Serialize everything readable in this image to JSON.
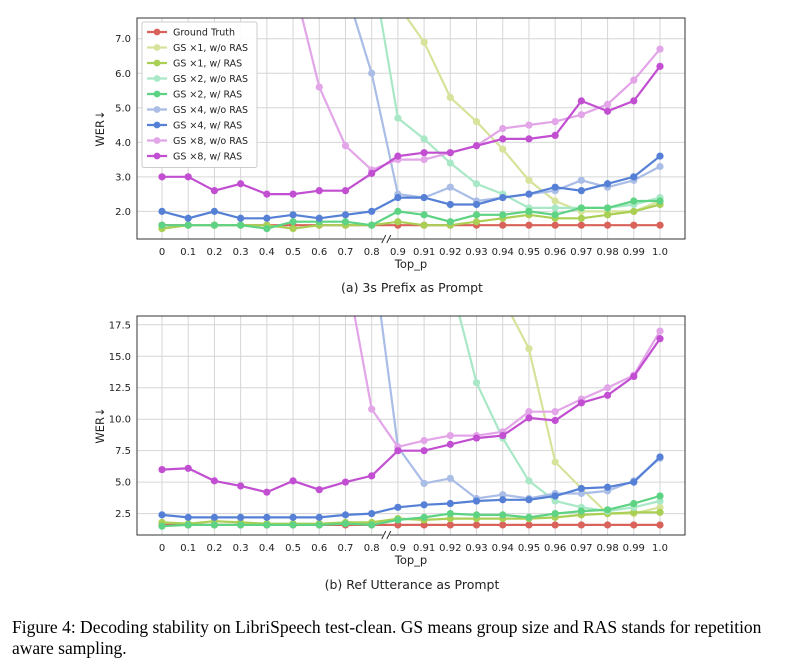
{
  "figure": {
    "caption": "Figure 4: Decoding stability on LibriSpeech test-clean. GS means group size and RAS stands for repetition aware sampling."
  },
  "chart_data": [
    {
      "type": "line",
      "subtitle": "(a) 3s Prefix as Prompt",
      "xlabel": "Top_p",
      "ylabel": "WER↓",
      "categories": [
        "0",
        "0.1",
        "0.2",
        "0.3",
        "0.4",
        "0.5",
        "0.6",
        "0.7",
        "0.8",
        "0.9",
        "0.91",
        "0.92",
        "0.93",
        "0.94",
        "0.95",
        "0.96",
        "0.97",
        "0.98",
        "0.99",
        "1.0"
      ],
      "ylim": [
        1.2,
        7.6
      ],
      "yticks": [
        "2.0",
        "3.0",
        "4.0",
        "5.0",
        "6.0",
        "7.0"
      ],
      "grid": true,
      "legend_position": "top-left",
      "axis_break_after": "0.8",
      "series": [
        {
          "name": "Ground Truth",
          "color": "#d9625a",
          "values": [
            1.6,
            1.6,
            1.6,
            1.6,
            1.6,
            1.6,
            1.6,
            1.6,
            1.6,
            1.6,
            1.6,
            1.6,
            1.6,
            1.6,
            1.6,
            1.6,
            1.6,
            1.6,
            1.6,
            1.6
          ]
        },
        {
          "name": "GS ×1, w/o RAS",
          "color": "#d6e39a",
          "values": [
            null,
            null,
            null,
            null,
            null,
            null,
            null,
            null,
            null,
            null,
            6.9,
            5.3,
            4.6,
            3.8,
            2.9,
            2.3,
            2.0,
            2.0,
            2.0,
            2.3
          ]
        },
        {
          "name": "GS ×1, w/ RAS",
          "color": "#a9cf54",
          "values": [
            1.5,
            1.6,
            1.6,
            1.6,
            1.6,
            1.5,
            1.6,
            1.6,
            1.6,
            1.7,
            1.6,
            1.6,
            1.7,
            1.8,
            1.9,
            1.8,
            1.8,
            1.9,
            2.0,
            2.2
          ]
        },
        {
          "name": "GS ×2, w/o RAS",
          "color": "#a8e8c6",
          "values": [
            null,
            null,
            null,
            null,
            null,
            null,
            null,
            null,
            null,
            4.7,
            4.1,
            3.4,
            2.8,
            2.5,
            2.1,
            2.1,
            2.1,
            2.1,
            2.2,
            2.4
          ]
        },
        {
          "name": "GS ×2, w/ RAS",
          "color": "#5dd383",
          "values": [
            1.6,
            1.6,
            1.6,
            1.6,
            1.5,
            1.7,
            1.7,
            1.7,
            1.6,
            2.0,
            1.9,
            1.7,
            1.9,
            1.9,
            2.0,
            1.9,
            2.1,
            2.1,
            2.3,
            2.3
          ]
        },
        {
          "name": "GS ×4, w/o RAS",
          "color": "#a9bde6",
          "values": [
            null,
            null,
            null,
            null,
            null,
            null,
            null,
            null,
            6.0,
            2.5,
            2.4,
            2.7,
            2.3,
            2.4,
            2.5,
            2.6,
            2.9,
            2.7,
            2.9,
            3.3
          ]
        },
        {
          "name": "GS ×4, w/ RAS",
          "color": "#5580d6",
          "values": [
            2.0,
            1.8,
            2.0,
            1.8,
            1.8,
            1.9,
            1.8,
            1.9,
            2.0,
            2.4,
            2.4,
            2.2,
            2.2,
            2.4,
            2.5,
            2.7,
            2.6,
            2.8,
            3.0,
            3.6
          ]
        },
        {
          "name": "GS ×8, w/o RAS",
          "color": "#e2a5e8",
          "values": [
            null,
            null,
            null,
            null,
            null,
            null,
            5.6,
            3.9,
            3.2,
            3.5,
            3.5,
            3.7,
            3.9,
            4.4,
            4.5,
            4.6,
            4.8,
            5.1,
            5.8,
            6.7
          ]
        },
        {
          "name": "GS ×8, w/ RAS",
          "color": "#c24fd1",
          "values": [
            3.0,
            3.0,
            2.6,
            2.8,
            2.5,
            2.5,
            2.6,
            2.6,
            3.1,
            3.6,
            3.7,
            3.7,
            3.9,
            4.1,
            4.1,
            4.2,
            5.2,
            4.9,
            5.2,
            6.2
          ]
        }
      ]
    },
    {
      "type": "line",
      "subtitle": "(b) Ref Utterance as Prompt",
      "xlabel": "Top_p",
      "ylabel": "WER↓",
      "categories": [
        "0",
        "0.1",
        "0.2",
        "0.3",
        "0.4",
        "0.5",
        "0.6",
        "0.7",
        "0.8",
        "0.9",
        "0.91",
        "0.92",
        "0.93",
        "0.94",
        "0.95",
        "0.96",
        "0.97",
        "0.98",
        "0.99",
        "1.0"
      ],
      "ylim": [
        0.8,
        18.2
      ],
      "yticks": [
        "2.5",
        "5.0",
        "7.5",
        "10.0",
        "12.5",
        "15.0",
        "17.5"
      ],
      "grid": true,
      "legend_position": "none",
      "axis_break_after": "0.8",
      "series": [
        {
          "name": "Ground Truth",
          "color": "#d9625a",
          "values": [
            1.6,
            1.6,
            1.6,
            1.6,
            1.6,
            1.6,
            1.6,
            1.6,
            1.6,
            1.6,
            1.6,
            1.6,
            1.6,
            1.6,
            1.6,
            1.6,
            1.6,
            1.6,
            1.6,
            1.6
          ]
        },
        {
          "name": "GS ×1, w/o RAS",
          "color": "#d6e39a",
          "values": [
            null,
            null,
            null,
            null,
            null,
            null,
            null,
            null,
            null,
            null,
            null,
            null,
            null,
            null,
            15.6,
            6.6,
            4.5,
            2.5,
            2.5,
            3.0
          ]
        },
        {
          "name": "GS ×1, w/ RAS",
          "color": "#a9cf54",
          "values": [
            1.8,
            1.7,
            1.9,
            1.8,
            1.7,
            1.7,
            1.7,
            1.8,
            1.8,
            2.1,
            2.0,
            2.1,
            2.1,
            2.1,
            2.1,
            2.2,
            2.4,
            2.5,
            2.6,
            2.6
          ]
        },
        {
          "name": "GS ×2, w/o RAS",
          "color": "#a8e8c6",
          "values": [
            null,
            null,
            null,
            null,
            null,
            null,
            null,
            null,
            null,
            null,
            null,
            null,
            12.9,
            8.5,
            5.1,
            3.5,
            3.0,
            2.7,
            3.0,
            3.5
          ]
        },
        {
          "name": "GS ×2, w/ RAS",
          "color": "#5dd383",
          "values": [
            1.5,
            1.6,
            1.6,
            1.6,
            1.6,
            1.6,
            1.6,
            1.7,
            1.6,
            2.0,
            2.2,
            2.5,
            2.4,
            2.4,
            2.2,
            2.5,
            2.7,
            2.8,
            3.3,
            3.9
          ]
        },
        {
          "name": "GS ×4, w/o RAS",
          "color": "#a9bde6",
          "values": [
            null,
            null,
            null,
            null,
            null,
            null,
            null,
            null,
            null,
            7.8,
            4.9,
            5.3,
            3.7,
            4.0,
            3.7,
            4.1,
            4.1,
            4.3,
            5.1,
            6.9
          ]
        },
        {
          "name": "GS ×4, w/ RAS",
          "color": "#5580d6",
          "values": [
            2.4,
            2.2,
            2.2,
            2.2,
            2.2,
            2.2,
            2.2,
            2.4,
            2.5,
            3.0,
            3.2,
            3.3,
            3.5,
            3.6,
            3.6,
            3.9,
            4.5,
            4.6,
            5.0,
            7.0
          ]
        },
        {
          "name": "GS ×8, w/o RAS",
          "color": "#e2a5e8",
          "values": [
            null,
            null,
            null,
            null,
            null,
            null,
            null,
            null,
            10.8,
            7.8,
            8.3,
            8.7,
            8.7,
            9.0,
            10.6,
            10.6,
            11.6,
            12.5,
            13.5,
            17.0
          ]
        },
        {
          "name": "GS ×8, w/ RAS",
          "color": "#c24fd1",
          "values": [
            6.0,
            6.1,
            5.1,
            4.7,
            4.2,
            5.1,
            4.4,
            5.0,
            5.5,
            7.5,
            7.5,
            8.0,
            8.5,
            8.7,
            10.1,
            9.9,
            11.3,
            11.9,
            13.4,
            16.4
          ]
        }
      ]
    }
  ]
}
